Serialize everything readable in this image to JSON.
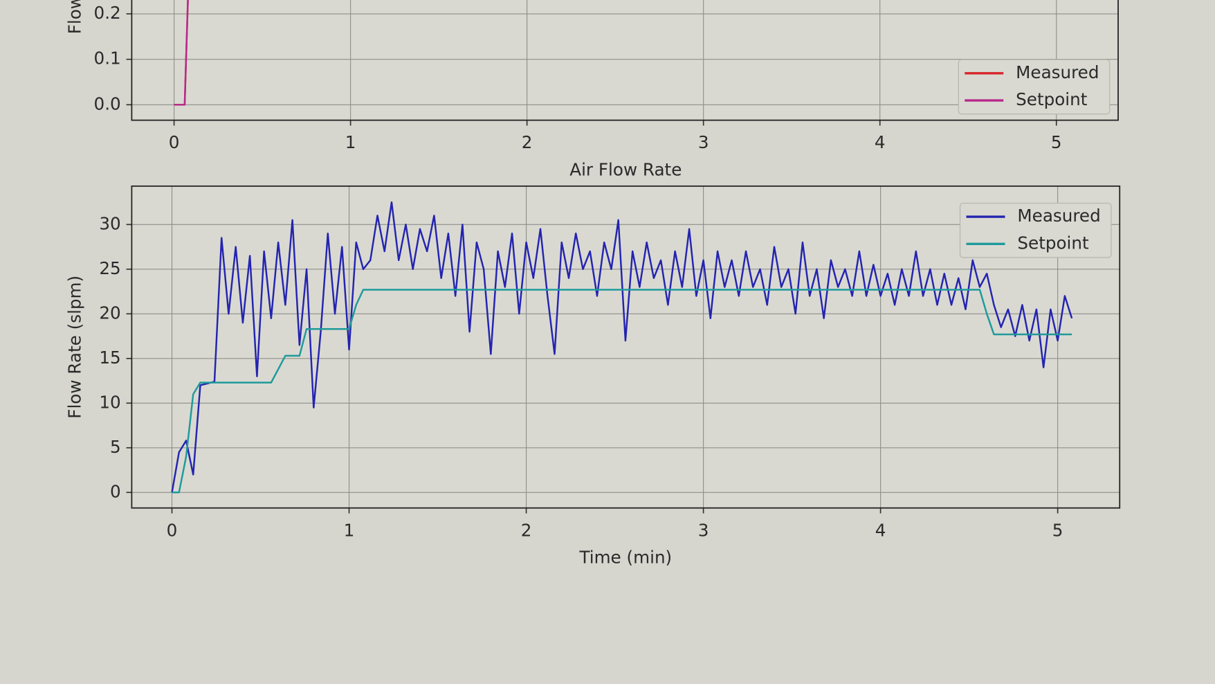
{
  "chart_data": [
    {
      "type": "line",
      "ylabel": "Flow",
      "x": [
        0,
        0.06,
        0.08
      ],
      "series": [
        {
          "name": "Measured",
          "color": "#d8262a",
          "values": [
            0,
            0,
            0.25
          ]
        },
        {
          "name": "Setpoint",
          "color": "#b8288a",
          "values": [
            0,
            0,
            0.25
          ]
        }
      ],
      "xlim": [
        -0.24,
        5.35
      ],
      "ylim": [
        -0.034,
        0.239
      ],
      "xticks": [
        0,
        1,
        2,
        3,
        4,
        5
      ],
      "yticks": [
        {
          "value": 0,
          "label": "0.0"
        },
        {
          "value": 0.1,
          "label": "0.1"
        },
        {
          "value": 0.2,
          "label": "0.2"
        }
      ],
      "grid": true,
      "legend": "lower right"
    },
    {
      "type": "line",
      "title": "Air Flow Rate",
      "xlabel": "Time (min)",
      "ylabel": "Flow Rate (slpm)",
      "x": [
        0,
        0.04,
        0.08,
        0.12,
        0.16,
        0.2,
        0.24,
        0.28,
        0.32,
        0.36,
        0.4,
        0.44,
        0.48,
        0.52,
        0.56,
        0.6,
        0.64,
        0.68,
        0.72,
        0.76,
        0.8,
        0.84,
        0.88,
        0.92,
        0.96,
        1,
        1.04,
        1.08,
        1.12,
        1.16,
        1.2,
        1.24,
        1.28,
        1.32,
        1.36,
        1.4,
        1.44,
        1.48,
        1.52,
        1.56,
        1.6,
        1.64,
        1.68,
        1.72,
        1.76,
        1.8,
        1.84,
        1.88,
        1.92,
        1.96,
        2,
        2.04,
        2.08,
        2.12,
        2.16,
        2.2,
        2.24,
        2.28,
        2.32,
        2.36,
        2.4,
        2.44,
        2.48,
        2.52,
        2.56,
        2.6,
        2.64,
        2.68,
        2.72,
        2.76,
        2.8,
        2.84,
        2.88,
        2.92,
        2.96,
        3,
        3.04,
        3.08,
        3.12,
        3.16,
        3.2,
        3.24,
        3.28,
        3.32,
        3.36,
        3.4,
        3.44,
        3.48,
        3.52,
        3.56,
        3.6,
        3.64,
        3.68,
        3.72,
        3.76,
        3.8,
        3.84,
        3.88,
        3.92,
        3.96,
        4,
        4.04,
        4.08,
        4.12,
        4.16,
        4.2,
        4.24,
        4.28,
        4.32,
        4.36,
        4.4,
        4.44,
        4.48,
        4.52,
        4.56,
        4.6,
        4.64,
        4.68,
        4.72,
        4.76,
        4.8,
        4.84,
        4.88,
        4.92,
        4.96,
        5,
        5.04,
        5.08
      ],
      "series": [
        {
          "name": "Measured",
          "color": "#2424b0",
          "values": [
            0,
            4.5,
            5.8,
            2,
            12,
            12.2,
            12.4,
            28.5,
            20,
            27.5,
            19,
            26.5,
            13,
            27,
            19.5,
            28,
            21,
            30.5,
            16.5,
            25,
            9.5,
            18,
            29,
            20,
            27.5,
            16,
            28,
            25,
            26,
            31,
            27,
            32.5,
            26,
            30,
            25,
            29.5,
            27,
            31,
            24,
            29,
            22,
            30,
            18,
            28,
            25,
            15.5,
            27,
            23,
            29,
            20,
            28,
            24,
            29.5,
            22,
            15.5,
            28,
            24,
            29,
            25,
            27,
            22,
            28,
            25,
            30.5,
            17,
            27,
            23,
            28,
            24,
            26,
            21,
            27,
            23,
            29.5,
            22,
            26,
            19.5,
            27,
            23,
            26,
            22,
            27,
            23,
            25,
            21,
            27.5,
            23,
            25,
            20,
            28,
            22,
            25,
            19.5,
            26,
            23,
            25,
            22,
            27,
            22,
            25.5,
            22,
            24.5,
            21,
            25,
            22,
            27,
            22,
            25,
            21,
            24.5,
            21,
            24,
            20.5,
            26,
            23,
            24.5,
            21,
            18.5,
            20.5,
            17.5,
            21,
            17,
            20.5,
            14,
            20.5,
            17,
            22,
            19.5
          ]
        },
        {
          "name": "Setpoint",
          "color": "#1f9a9a",
          "values": [
            0,
            0,
            4,
            11,
            12.3,
            12.3,
            12.3,
            12.3,
            12.3,
            12.3,
            12.3,
            12.3,
            12.3,
            12.3,
            12.3,
            13.8,
            15.3,
            15.3,
            15.3,
            18.3,
            18.3,
            18.3,
            18.3,
            18.3,
            18.3,
            18.3,
            21,
            22.7,
            22.7,
            22.7,
            22.7,
            22.7,
            22.7,
            22.7,
            22.7,
            22.7,
            22.7,
            22.7,
            22.7,
            22.7,
            22.7,
            22.7,
            22.7,
            22.7,
            22.7,
            22.7,
            22.7,
            22.7,
            22.7,
            22.7,
            22.7,
            22.7,
            22.7,
            22.7,
            22.7,
            22.7,
            22.7,
            22.7,
            22.7,
            22.7,
            22.7,
            22.7,
            22.7,
            22.7,
            22.7,
            22.7,
            22.7,
            22.7,
            22.7,
            22.7,
            22.7,
            22.7,
            22.7,
            22.7,
            22.7,
            22.7,
            22.7,
            22.7,
            22.7,
            22.7,
            22.7,
            22.7,
            22.7,
            22.7,
            22.7,
            22.7,
            22.7,
            22.7,
            22.7,
            22.7,
            22.7,
            22.7,
            22.7,
            22.7,
            22.7,
            22.7,
            22.7,
            22.7,
            22.7,
            22.7,
            22.7,
            22.7,
            22.7,
            22.7,
            22.7,
            22.7,
            22.7,
            22.7,
            22.7,
            22.7,
            22.7,
            22.7,
            22.7,
            22.7,
            22.7,
            20,
            17.7,
            17.7,
            17.7,
            17.7,
            17.7,
            17.7,
            17.7,
            17.7,
            17.7,
            17.7,
            17.7,
            17.7
          ]
        }
      ],
      "xlim": [
        -0.227,
        5.35
      ],
      "ylim": [
        -1.74,
        34.3
      ],
      "xticks": [
        0,
        1,
        2,
        3,
        4,
        5
      ],
      "yticks": [
        0,
        5,
        10,
        15,
        20,
        25,
        30
      ],
      "grid": true,
      "legend": "upper right"
    }
  ]
}
